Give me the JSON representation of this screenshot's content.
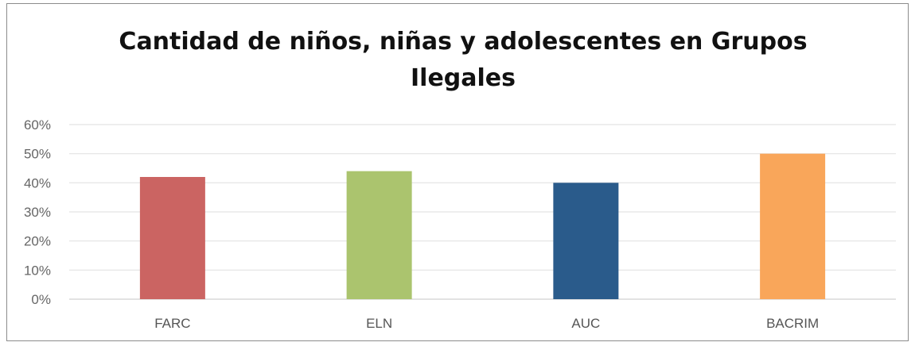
{
  "chart_data": {
    "type": "bar",
    "title_lines": [
      "Cantidad de niños, niñas y adolescentes en Grupos",
      "Ilegales"
    ],
    "categories": [
      "FARC",
      "ELN",
      "AUC",
      "BACRIM"
    ],
    "values": [
      0.42,
      0.44,
      0.4,
      0.5
    ],
    "colors": [
      "#cb6462",
      "#abc46e",
      "#2a5b8b",
      "#f9a65a"
    ],
    "yticks": [
      "0%",
      "10%",
      "20%",
      "30%",
      "40%",
      "50%",
      "60%"
    ],
    "ylim": [
      0,
      0.6
    ],
    "grid": true,
    "legend": "none"
  }
}
